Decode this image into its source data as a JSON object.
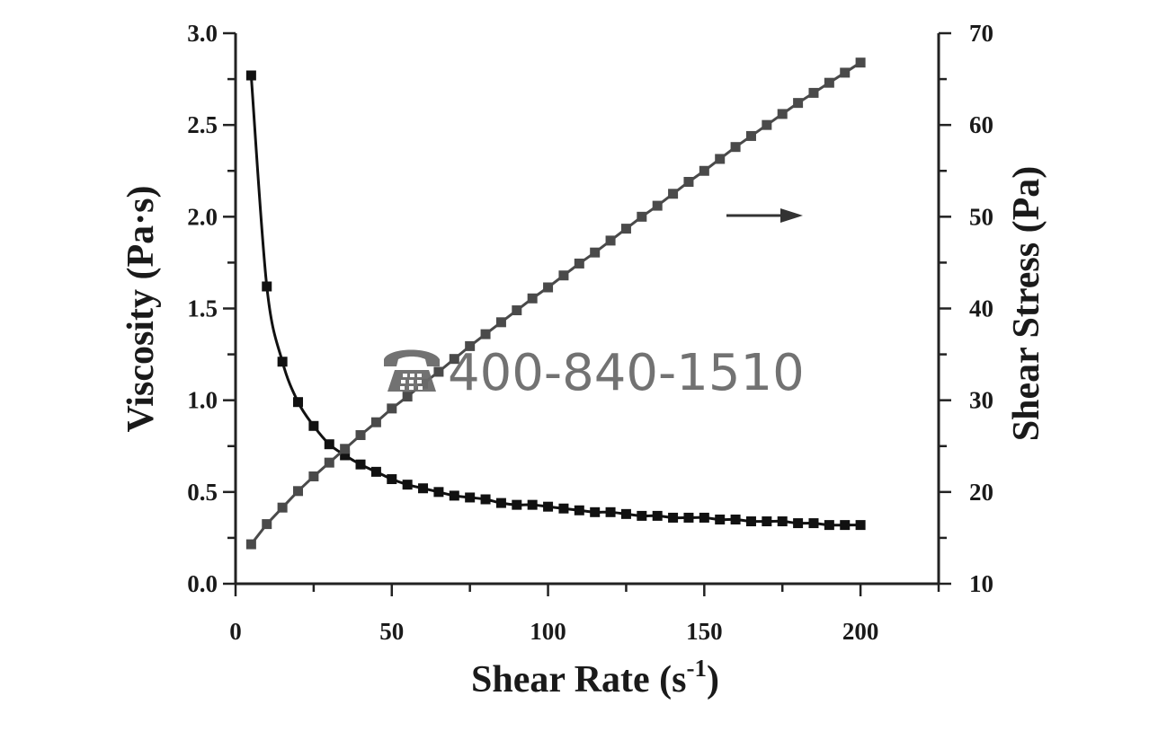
{
  "chart_data": {
    "type": "line",
    "x": [
      5,
      10,
      15,
      20,
      25,
      30,
      35,
      40,
      45,
      50,
      55,
      60,
      65,
      70,
      75,
      80,
      85,
      90,
      95,
      100,
      105,
      110,
      115,
      120,
      125,
      130,
      135,
      140,
      145,
      150,
      155,
      160,
      165,
      170,
      175,
      180,
      185,
      190,
      195,
      200
    ],
    "series": [
      {
        "axis": "left",
        "color": "#111111",
        "values": [
          2.77,
          1.62,
          1.21,
          0.99,
          0.86,
          0.76,
          0.7,
          0.65,
          0.61,
          0.57,
          0.54,
          0.52,
          0.5,
          0.48,
          0.47,
          0.46,
          0.44,
          0.43,
          0.43,
          0.42,
          0.41,
          0.4,
          0.39,
          0.39,
          0.38,
          0.37,
          0.37,
          0.36,
          0.36,
          0.36,
          0.35,
          0.35,
          0.34,
          0.34,
          0.34,
          0.33,
          0.33,
          0.32,
          0.32,
          0.32
        ]
      },
      {
        "axis": "right",
        "color": "#4a4a4a",
        "values": [
          14.3,
          16.5,
          18.3,
          20.1,
          21.7,
          23.2,
          24.7,
          26.2,
          27.6,
          29.1,
          30.4,
          31.8,
          33.1,
          34.5,
          35.9,
          37.2,
          38.5,
          39.8,
          41.1,
          42.3,
          43.6,
          44.9,
          46.1,
          47.4,
          48.7,
          50.0,
          51.2,
          52.5,
          53.8,
          55.0,
          56.3,
          57.6,
          58.8,
          60.0,
          61.2,
          62.4,
          63.5,
          64.6,
          65.7,
          66.8
        ]
      }
    ],
    "xlabel": "Shear Rate (s",
    "xlabel_superscript": "-1",
    "xlabel_suffix": ")",
    "ylabel": "Viscosity (Pa·s)",
    "y2label": "Shear Stress (Pa)",
    "xlim": [
      0,
      225
    ],
    "ylim": [
      0,
      3.0
    ],
    "y2lim": [
      10,
      70
    ],
    "x_ticks": [
      "0",
      "50",
      "100",
      "150",
      "200"
    ],
    "y_ticks": [
      "0.0",
      "0.5",
      "1.0",
      "1.5",
      "2.0",
      "2.5",
      "3.0"
    ],
    "y2_ticks": [
      "10",
      "20",
      "30",
      "40",
      "50",
      "60",
      "70"
    ],
    "grid": false,
    "annotation_arrow": "points right, toward the Shear Stress axis"
  },
  "watermark": {
    "icon": "telephone-icon",
    "text": "400-840-1510"
  }
}
